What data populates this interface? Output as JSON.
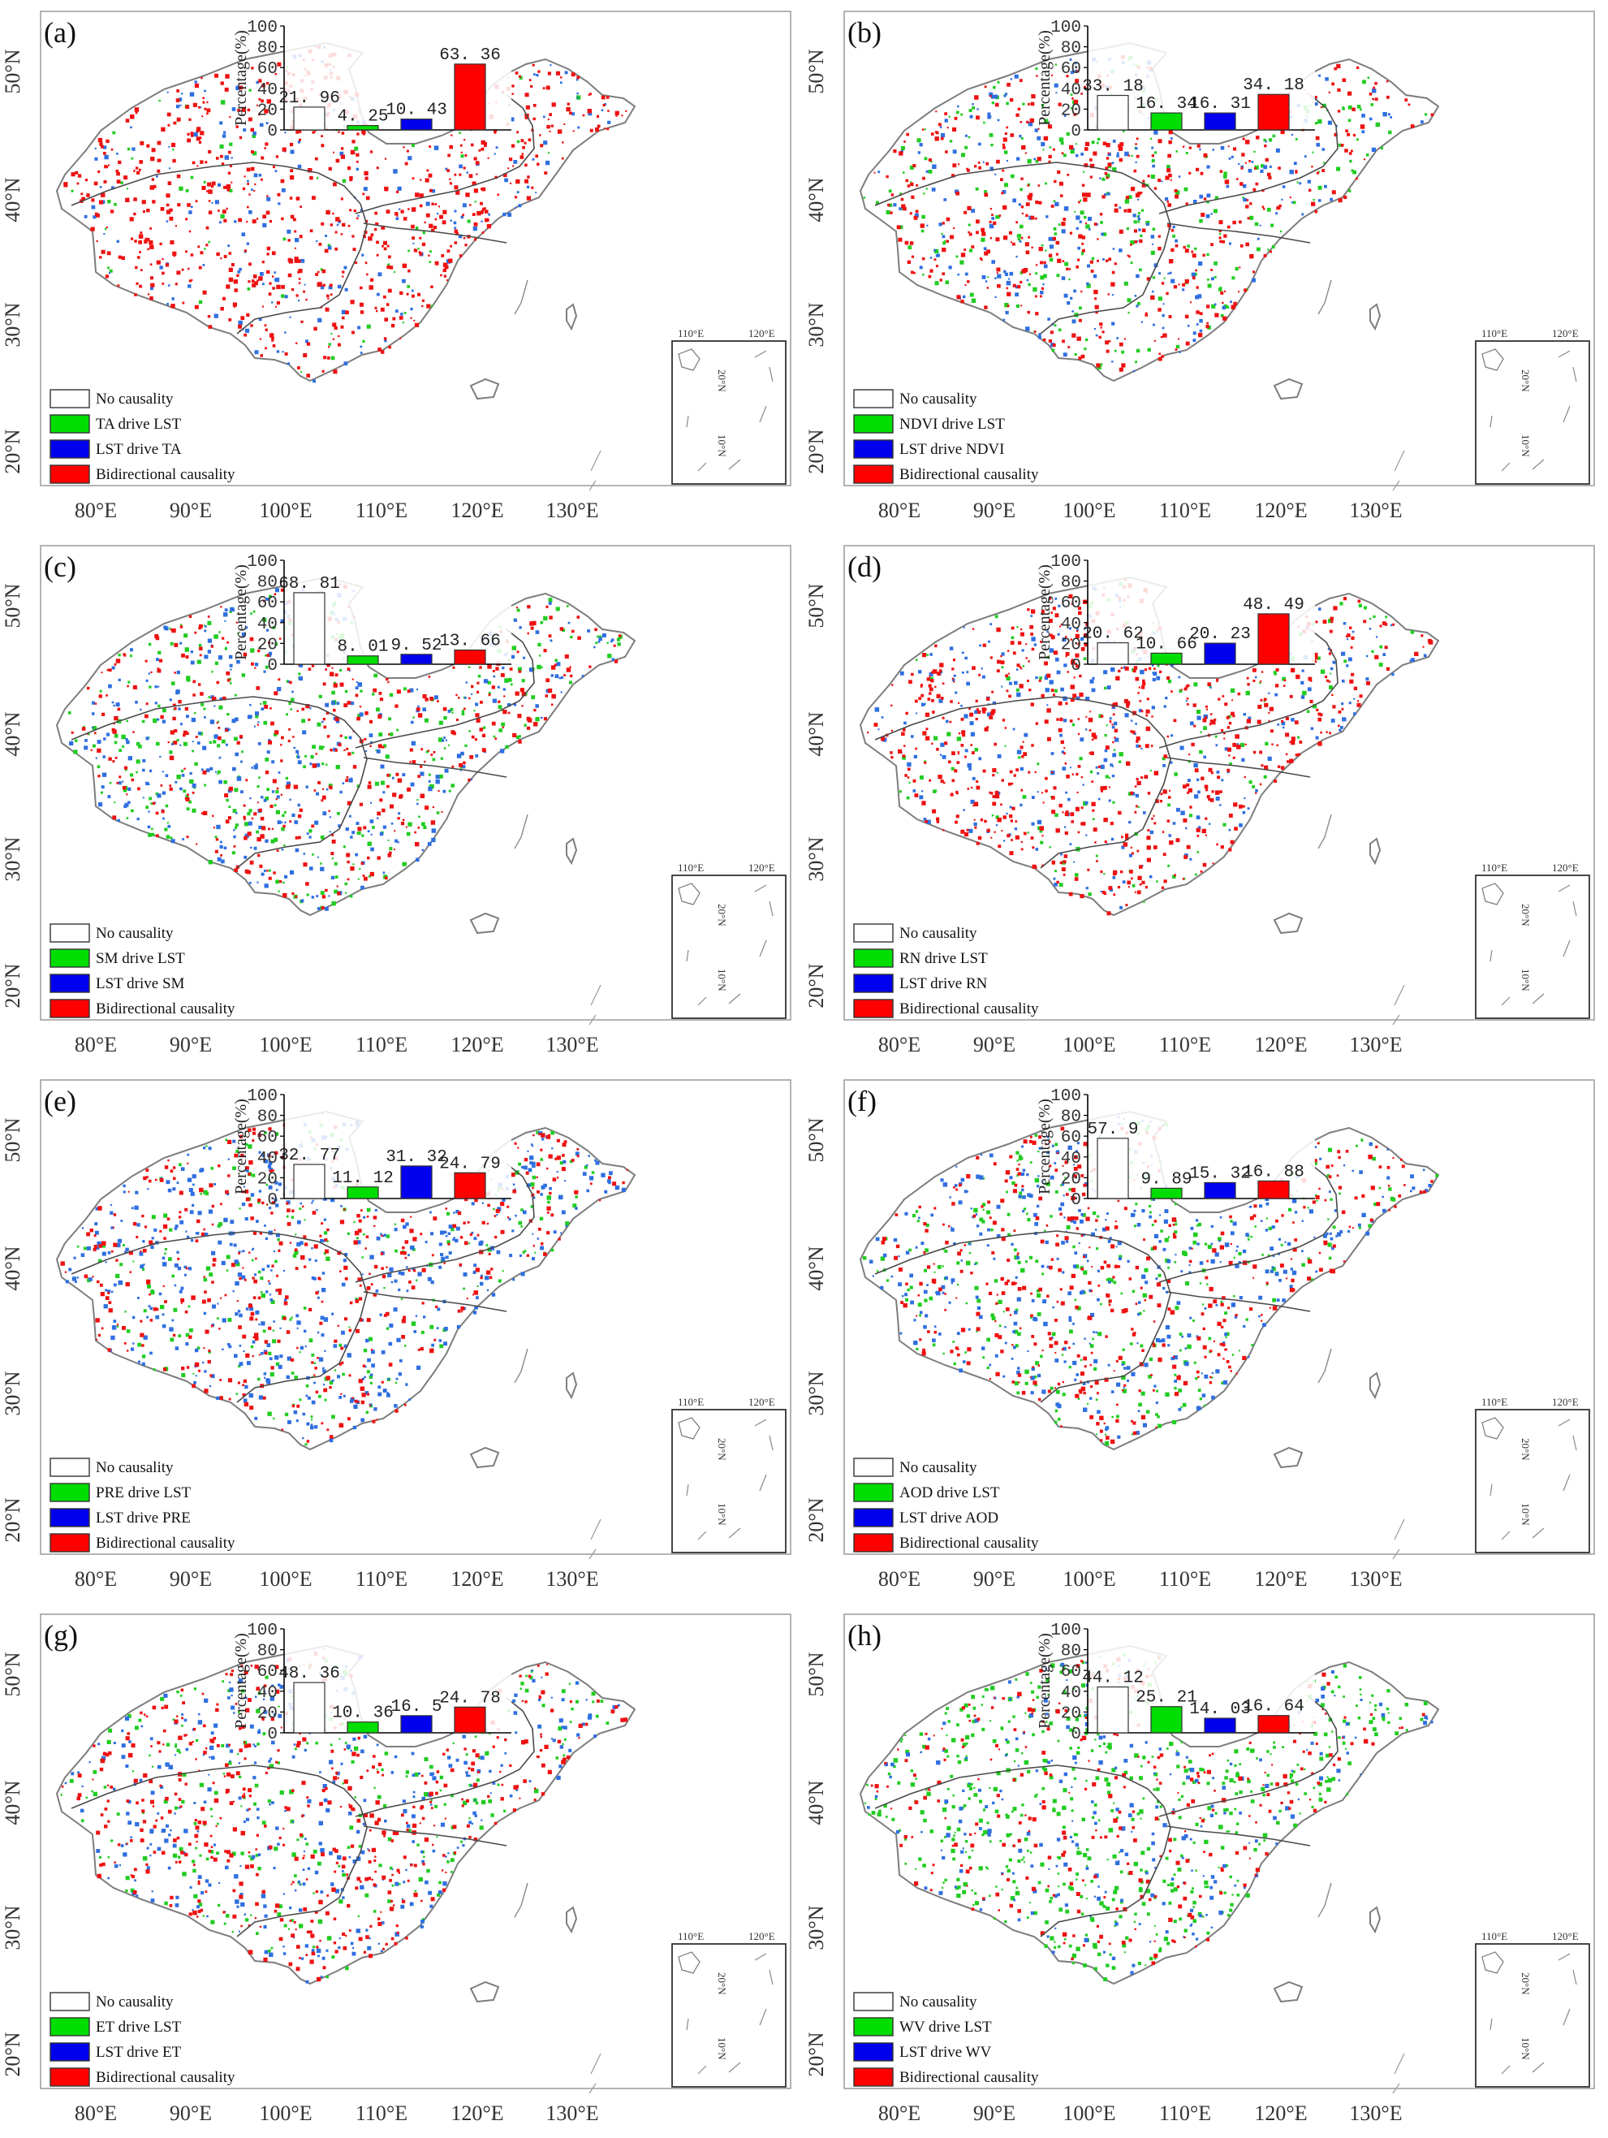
{
  "lon_labels": [
    "80°E",
    "90°E",
    "100°E",
    "110°E",
    "120°E",
    "130°E"
  ],
  "lat_labels": [
    "50°N",
    "40°N",
    "30°N",
    "20°N"
  ],
  "inset_lon_labels": [
    "110°E",
    "120°E"
  ],
  "inset_lat_labels": [
    "20°N",
    "10°N"
  ],
  "legend_no_causality": "No causality",
  "legend_bidirectional": "Bidirectional causality",
  "bar_ylabel": "Percentage(%)",
  "bar_yticks": [
    "0",
    "20",
    "40",
    "60",
    "80",
    "100"
  ],
  "colors": {
    "no_causality": "#ffffff",
    "driver_drives_lst": "#00dd00",
    "lst_drives_driver": "#0000ee",
    "bidirectional": "#ff0000",
    "map_green": "#22cc22",
    "map_blue": "#2f6fe0",
    "map_red": "#ee1111"
  },
  "chart_data": [
    {
      "type": "bar",
      "panel": "(a)",
      "categories": [
        "No causality",
        "TA drive LST",
        "LST drive TA",
        "Bidirectional causality"
      ],
      "values": [
        21.96,
        4.25,
        10.43,
        63.36
      ],
      "value_labels": [
        "21. 96",
        "4. 25",
        "10. 43",
        "63. 36"
      ],
      "ylabel": "Percentage(%)",
      "ylim": [
        0,
        100
      ],
      "density": [
        0.35,
        0.06,
        0.17,
        0.62
      ]
    },
    {
      "type": "bar",
      "panel": "(b)",
      "categories": [
        "No causality",
        "NDVI drive LST",
        "LST drive NDVI",
        "Bidirectional causality"
      ],
      "values": [
        33.18,
        16.34,
        16.31,
        34.18
      ],
      "value_labels": [
        "33. 18",
        "16. 34",
        "16. 31",
        "34. 18"
      ],
      "ylabel": "Percentage(%)",
      "ylim": [
        0,
        100
      ],
      "density": [
        0.35,
        0.2,
        0.2,
        0.35
      ]
    },
    {
      "type": "bar",
      "panel": "(c)",
      "categories": [
        "No causality",
        "SM drive LST",
        "LST drive SM",
        "Bidirectional causality"
      ],
      "values": [
        68.81,
        8.01,
        9.52,
        13.66
      ],
      "value_labels": [
        "68. 81",
        "8. 01",
        "9. 52",
        "13. 66"
      ],
      "ylabel": "Percentage(%)",
      "ylim": [
        0,
        100
      ],
      "density": [
        0.25,
        0.14,
        0.16,
        0.18
      ]
    },
    {
      "type": "bar",
      "panel": "(d)",
      "categories": [
        "No causality",
        "RN drive LST",
        "LST drive RN",
        "Bidirectional causality"
      ],
      "values": [
        20.62,
        10.66,
        20.23,
        48.49
      ],
      "value_labels": [
        "20. 62",
        "10. 66",
        "20. 23",
        "48. 49"
      ],
      "ylabel": "Percentage(%)",
      "ylim": [
        0,
        100
      ],
      "density": [
        0.3,
        0.11,
        0.22,
        0.5
      ]
    },
    {
      "type": "bar",
      "panel": "(e)",
      "categories": [
        "No causality",
        "PRE drive LST",
        "LST drive PRE",
        "Bidirectional causality"
      ],
      "values": [
        32.77,
        11.12,
        31.32,
        24.79
      ],
      "value_labels": [
        "32. 77",
        "11. 12",
        "31. 32",
        "24. 79"
      ],
      "ylabel": "Percentage(%)",
      "ylim": [
        0,
        100
      ],
      "density": [
        0.3,
        0.12,
        0.32,
        0.26
      ]
    },
    {
      "type": "bar",
      "panel": "(f)",
      "categories": [
        "No causality",
        "AOD drive LST",
        "LST drive AOD",
        "Bidirectional causality"
      ],
      "values": [
        57.9,
        9.89,
        15.32,
        16.88
      ],
      "value_labels": [
        "57. 9",
        "9. 89",
        "15. 32",
        "16. 88"
      ],
      "ylabel": "Percentage(%)",
      "ylim": [
        0,
        100
      ],
      "density": [
        0.3,
        0.13,
        0.17,
        0.17
      ]
    },
    {
      "type": "bar",
      "panel": "(g)",
      "categories": [
        "No causality",
        "ET drive LST",
        "LST drive ET",
        "Bidirectional causality"
      ],
      "values": [
        48.36,
        10.36,
        16.5,
        24.78
      ],
      "value_labels": [
        "48. 36",
        "10. 36",
        "16. 5",
        "24. 78"
      ],
      "ylabel": "Percentage(%)",
      "ylim": [
        0,
        100
      ],
      "density": [
        0.3,
        0.13,
        0.18,
        0.26
      ]
    },
    {
      "type": "bar",
      "panel": "(h)",
      "categories": [
        "No causality",
        "WV drive LST",
        "LST drive WV",
        "Bidirectional causality"
      ],
      "values": [
        44.12,
        25.21,
        14.03,
        16.64
      ],
      "value_labels": [
        "44. 12",
        "25. 21",
        "14. 03",
        "16. 64"
      ],
      "ylabel": "Percentage(%)",
      "ylim": [
        0,
        100
      ],
      "density": [
        0.3,
        0.2,
        0.08,
        0.09
      ]
    }
  ]
}
